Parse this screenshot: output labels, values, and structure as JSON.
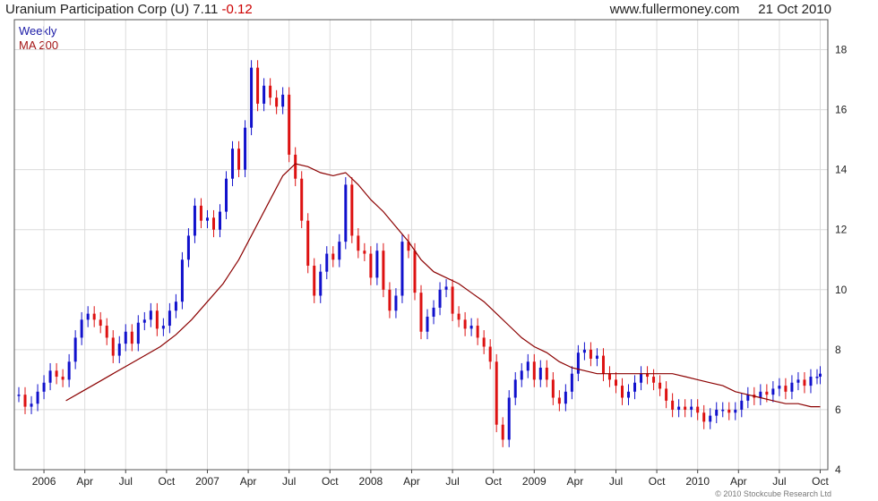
{
  "header": {
    "title": "Uranium Participation Corp (U) 7.11",
    "change": "-0.12",
    "site": "www.fullermoney.com",
    "date": "21 Oct 2010"
  },
  "footer": {
    "copyright": "© 2010 Stockcube Research Ltd"
  },
  "colors": {
    "up": "#1111cc",
    "down": "#dd1111",
    "ma": "#8b0000",
    "grid": "#dcdcdc"
  },
  "chart_data": {
    "type": "line",
    "legend": [
      "Weekly",
      "MA 200"
    ],
    "yticks": [
      4,
      6,
      8,
      10,
      12,
      14,
      16,
      18
    ],
    "ylim": [
      4,
      19
    ],
    "xlim": [
      0,
      256
    ],
    "xticks": [
      {
        "label": "2006",
        "x": 8
      },
      {
        "label": "Apr",
        "x": 21
      },
      {
        "label": "Jul",
        "x": 34
      },
      {
        "label": "Oct",
        "x": 47
      },
      {
        "label": "2007",
        "x": 60
      },
      {
        "label": "Apr",
        "x": 73
      },
      {
        "label": "Jul",
        "x": 86
      },
      {
        "label": "Oct",
        "x": 99
      },
      {
        "label": "2008",
        "x": 112
      },
      {
        "label": "Apr",
        "x": 125
      },
      {
        "label": "Jul",
        "x": 138
      },
      {
        "label": "Oct",
        "x": 151
      },
      {
        "label": "2009",
        "x": 164
      },
      {
        "label": "Apr",
        "x": 177
      },
      {
        "label": "Jul",
        "x": 190
      },
      {
        "label": "Oct",
        "x": 203
      },
      {
        "label": "2010",
        "x": 216
      },
      {
        "label": "Apr",
        "x": 229
      },
      {
        "label": "Jul",
        "x": 242
      },
      {
        "label": "Oct",
        "x": 255
      }
    ],
    "series": [
      {
        "name": "Weekly",
        "style": "candlestick-close",
        "points": [
          [
            0,
            6.5
          ],
          [
            2,
            6.1
          ],
          [
            4,
            6.2
          ],
          [
            6,
            6.6
          ],
          [
            8,
            6.9
          ],
          [
            10,
            7.3
          ],
          [
            12,
            7.1
          ],
          [
            14,
            7.0
          ],
          [
            16,
            7.6
          ],
          [
            18,
            8.4
          ],
          [
            20,
            9.0
          ],
          [
            22,
            9.2
          ],
          [
            24,
            9.0
          ],
          [
            26,
            8.8
          ],
          [
            28,
            8.4
          ],
          [
            30,
            7.8
          ],
          [
            32,
            8.2
          ],
          [
            34,
            8.6
          ],
          [
            36,
            8.2
          ],
          [
            38,
            8.9
          ],
          [
            40,
            9.0
          ],
          [
            42,
            9.3
          ],
          [
            44,
            8.7
          ],
          [
            46,
            8.8
          ],
          [
            48,
            9.3
          ],
          [
            50,
            9.6
          ],
          [
            52,
            11.0
          ],
          [
            54,
            11.8
          ],
          [
            56,
            12.8
          ],
          [
            58,
            12.3
          ],
          [
            60,
            12.4
          ],
          [
            62,
            12.0
          ],
          [
            64,
            12.6
          ],
          [
            66,
            13.7
          ],
          [
            68,
            14.7
          ],
          [
            70,
            14.0
          ],
          [
            72,
            15.4
          ],
          [
            74,
            17.4
          ],
          [
            76,
            16.2
          ],
          [
            78,
            16.8
          ],
          [
            80,
            16.4
          ],
          [
            82,
            16.1
          ],
          [
            84,
            16.5
          ],
          [
            86,
            14.5
          ],
          [
            88,
            13.7
          ],
          [
            90,
            12.3
          ],
          [
            92,
            10.8
          ],
          [
            94,
            9.8
          ],
          [
            96,
            10.6
          ],
          [
            98,
            11.2
          ],
          [
            100,
            11.0
          ],
          [
            102,
            11.6
          ],
          [
            104,
            13.5
          ],
          [
            106,
            11.8
          ],
          [
            108,
            11.3
          ],
          [
            110,
            11.2
          ],
          [
            112,
            10.4
          ],
          [
            114,
            11.3
          ],
          [
            116,
            10.0
          ],
          [
            118,
            9.3
          ],
          [
            120,
            9.8
          ],
          [
            122,
            11.6
          ],
          [
            124,
            11.3
          ],
          [
            126,
            9.9
          ],
          [
            128,
            8.6
          ],
          [
            130,
            9.1
          ],
          [
            132,
            9.4
          ],
          [
            134,
            10.0
          ],
          [
            136,
            10.1
          ],
          [
            138,
            9.2
          ],
          [
            140,
            9.0
          ],
          [
            142,
            8.7
          ],
          [
            144,
            8.8
          ],
          [
            146,
            8.4
          ],
          [
            148,
            8.1
          ],
          [
            150,
            7.6
          ],
          [
            152,
            5.5
          ],
          [
            154,
            5.0
          ],
          [
            156,
            6.4
          ],
          [
            158,
            7.0
          ],
          [
            160,
            7.3
          ],
          [
            162,
            7.6
          ],
          [
            164,
            7.0
          ],
          [
            166,
            7.4
          ],
          [
            168,
            7.0
          ],
          [
            170,
            6.4
          ],
          [
            172,
            6.2
          ],
          [
            174,
            6.6
          ],
          [
            176,
            7.2
          ],
          [
            178,
            7.9
          ],
          [
            180,
            8.0
          ],
          [
            182,
            7.7
          ],
          [
            184,
            7.8
          ],
          [
            186,
            7.2
          ],
          [
            188,
            7.0
          ],
          [
            190,
            6.8
          ],
          [
            192,
            6.4
          ],
          [
            194,
            6.6
          ],
          [
            196,
            6.9
          ],
          [
            198,
            7.2
          ],
          [
            200,
            7.1
          ],
          [
            202,
            6.9
          ],
          [
            204,
            6.7
          ],
          [
            206,
            6.3
          ],
          [
            208,
            6.0
          ],
          [
            210,
            6.1
          ],
          [
            212,
            6.0
          ],
          [
            214,
            6.1
          ],
          [
            216,
            5.9
          ],
          [
            218,
            5.6
          ],
          [
            220,
            5.8
          ],
          [
            222,
            6.0
          ],
          [
            224,
            6.0
          ],
          [
            226,
            5.9
          ],
          [
            228,
            6.0
          ],
          [
            230,
            6.3
          ],
          [
            232,
            6.5
          ],
          [
            234,
            6.4
          ],
          [
            236,
            6.6
          ],
          [
            238,
            6.5
          ],
          [
            240,
            6.7
          ],
          [
            242,
            6.8
          ],
          [
            244,
            6.6
          ],
          [
            246,
            6.9
          ],
          [
            248,
            7.0
          ],
          [
            250,
            6.8
          ],
          [
            252,
            7.1
          ],
          [
            254,
            7.1
          ],
          [
            255,
            7.2
          ]
        ]
      },
      {
        "name": "MA 200",
        "style": "line",
        "points": [
          [
            15,
            6.3
          ],
          [
            20,
            6.6
          ],
          [
            25,
            6.9
          ],
          [
            30,
            7.2
          ],
          [
            35,
            7.5
          ],
          [
            40,
            7.8
          ],
          [
            45,
            8.1
          ],
          [
            50,
            8.5
          ],
          [
            55,
            9.0
          ],
          [
            60,
            9.6
          ],
          [
            65,
            10.2
          ],
          [
            70,
            11.0
          ],
          [
            75,
            12.0
          ],
          [
            80,
            13.0
          ],
          [
            84,
            13.8
          ],
          [
            88,
            14.2
          ],
          [
            92,
            14.1
          ],
          [
            96,
            13.9
          ],
          [
            100,
            13.8
          ],
          [
            104,
            13.9
          ],
          [
            108,
            13.5
          ],
          [
            112,
            13.0
          ],
          [
            116,
            12.6
          ],
          [
            120,
            12.1
          ],
          [
            124,
            11.6
          ],
          [
            128,
            11.0
          ],
          [
            132,
            10.6
          ],
          [
            136,
            10.4
          ],
          [
            140,
            10.2
          ],
          [
            144,
            9.9
          ],
          [
            148,
            9.6
          ],
          [
            152,
            9.2
          ],
          [
            156,
            8.8
          ],
          [
            160,
            8.4
          ],
          [
            164,
            8.1
          ],
          [
            168,
            7.9
          ],
          [
            172,
            7.6
          ],
          [
            176,
            7.4
          ],
          [
            180,
            7.3
          ],
          [
            184,
            7.2
          ],
          [
            188,
            7.2
          ],
          [
            192,
            7.2
          ],
          [
            196,
            7.2
          ],
          [
            200,
            7.2
          ],
          [
            204,
            7.2
          ],
          [
            208,
            7.2
          ],
          [
            212,
            7.1
          ],
          [
            216,
            7.0
          ],
          [
            220,
            6.9
          ],
          [
            224,
            6.8
          ],
          [
            228,
            6.6
          ],
          [
            232,
            6.5
          ],
          [
            236,
            6.4
          ],
          [
            240,
            6.3
          ],
          [
            244,
            6.2
          ],
          [
            248,
            6.2
          ],
          [
            252,
            6.1
          ],
          [
            255,
            6.1
          ]
        ]
      }
    ]
  }
}
